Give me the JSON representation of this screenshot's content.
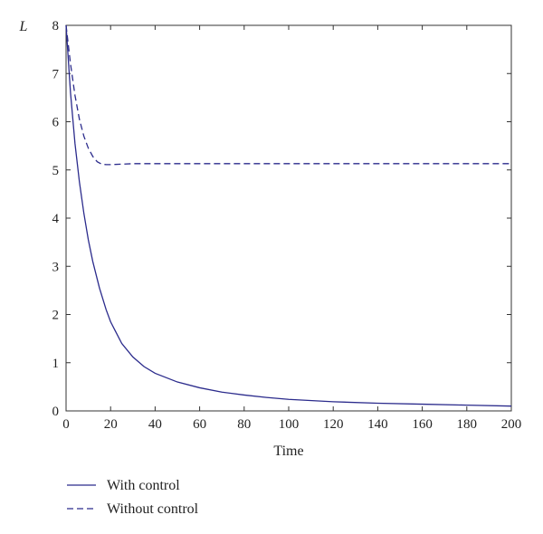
{
  "chart_data": {
    "type": "line",
    "title": "",
    "xlabel": "Time",
    "ylabel": "L",
    "xlim": [
      0,
      200
    ],
    "ylim": [
      0,
      8
    ],
    "xticks": [
      0,
      20,
      40,
      60,
      80,
      100,
      120,
      140,
      160,
      180,
      200
    ],
    "yticks": [
      0,
      1,
      2,
      3,
      4,
      5,
      6,
      7,
      8
    ],
    "grid": false,
    "legend_position": "bottom-left",
    "line_color": "#2b2b8c",
    "series": [
      {
        "name": "With control",
        "style": "solid",
        "x": [
          0,
          2,
          4,
          6,
          8,
          10,
          12,
          15,
          18,
          20,
          25,
          30,
          35,
          40,
          50,
          60,
          70,
          80,
          90,
          100,
          120,
          140,
          160,
          180,
          200
        ],
        "y": [
          8.0,
          6.6,
          5.55,
          4.75,
          4.1,
          3.55,
          3.1,
          2.55,
          2.1,
          1.85,
          1.4,
          1.12,
          0.92,
          0.78,
          0.6,
          0.48,
          0.39,
          0.33,
          0.28,
          0.24,
          0.19,
          0.16,
          0.14,
          0.12,
          0.1
        ]
      },
      {
        "name": "Without control",
        "style": "dashed",
        "x": [
          0,
          2,
          4,
          6,
          8,
          10,
          12,
          14,
          16,
          18,
          20,
          25,
          30,
          40,
          50,
          100,
          150,
          200
        ],
        "y": [
          8.0,
          7.2,
          6.55,
          6.05,
          5.7,
          5.45,
          5.28,
          5.17,
          5.12,
          5.11,
          5.11,
          5.12,
          5.13,
          5.13,
          5.13,
          5.13,
          5.13,
          5.13
        ]
      }
    ]
  }
}
